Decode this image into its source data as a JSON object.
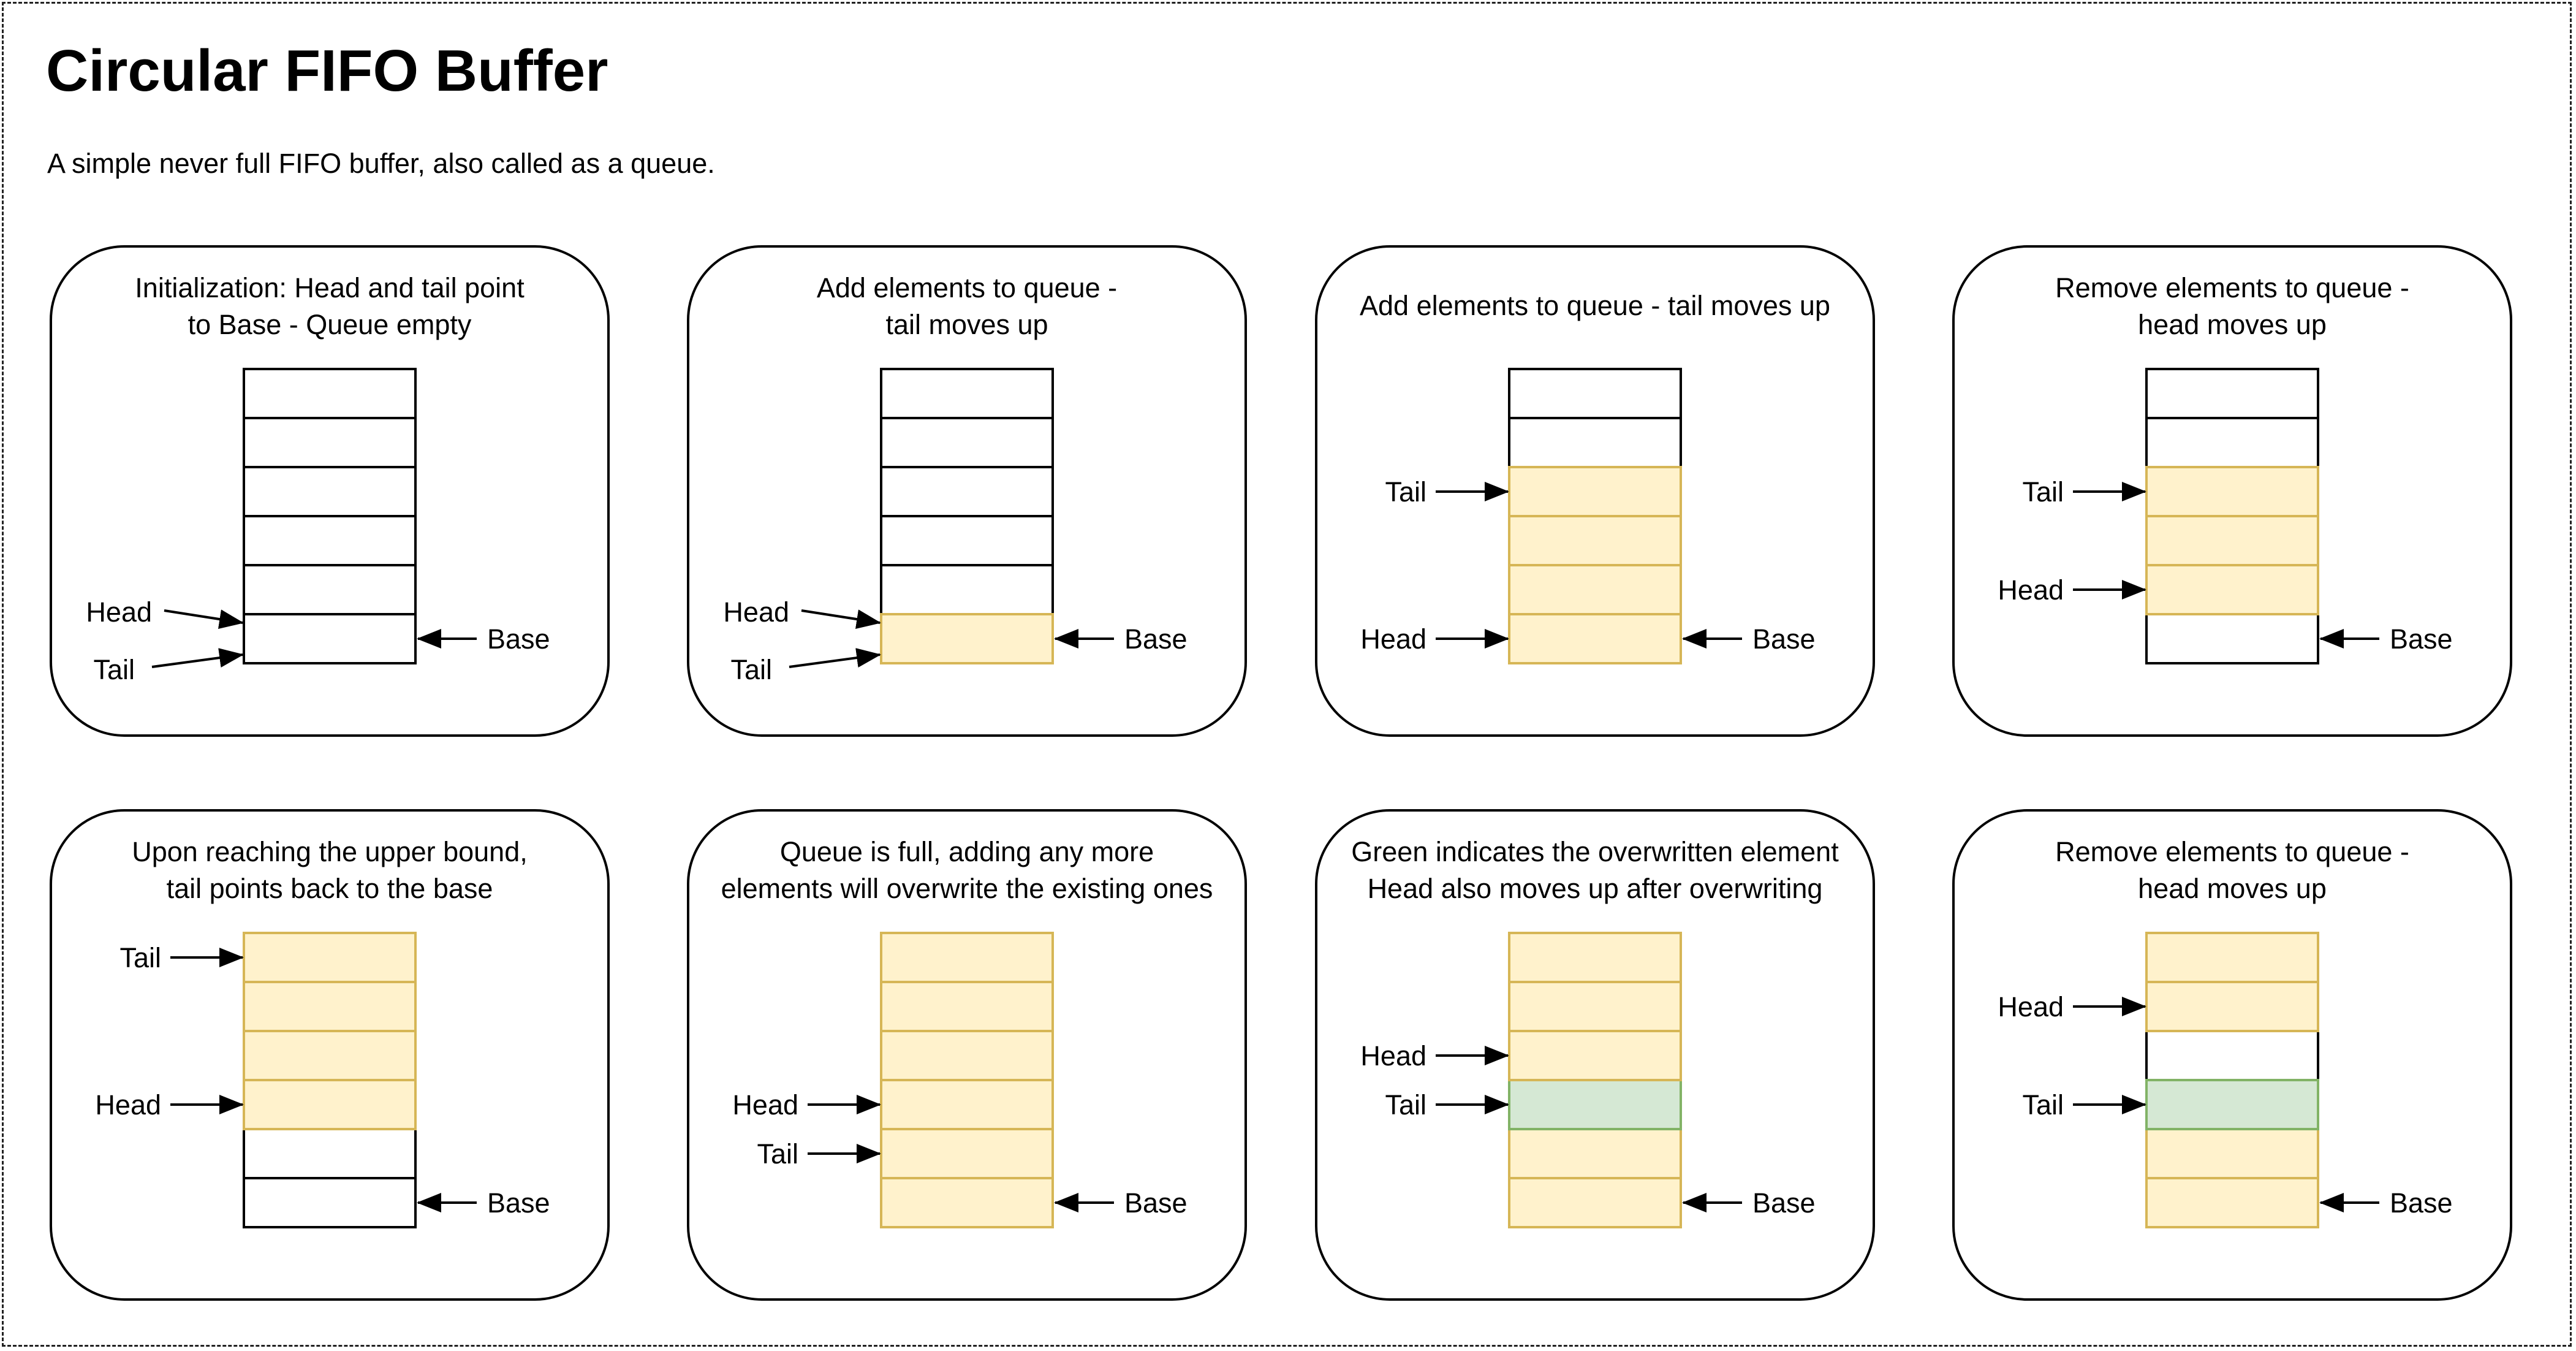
{
  "title": "Circular FIFO Buffer",
  "subtitle": "A simple never full FIFO buffer, also called as a queue.",
  "colors": {
    "empty_fill": "#ffffff",
    "empty_stroke": "#000000",
    "filled_fill": "#fff2cc",
    "filled_stroke": "#d6b656",
    "overwritten_fill": "#d5e8d4",
    "overwritten_stroke": "#82b366"
  },
  "panels": [
    {
      "caption": [
        "Initialization: Head and tail point",
        "to Base - Queue empty"
      ],
      "cell_count": 6,
      "cells": [
        "empty",
        "empty",
        "empty",
        "empty",
        "empty",
        "empty"
      ],
      "pointers": [
        {
          "label": "Head",
          "cell": 1,
          "side": "left",
          "style": "diagonal-down"
        },
        {
          "label": "Tail",
          "cell": 0,
          "side": "left",
          "style": "diagonal-up"
        },
        {
          "label": "Base",
          "cell": 0,
          "side": "right",
          "style": "straight"
        }
      ]
    },
    {
      "caption": [
        "Add elements to queue -",
        "tail moves up"
      ],
      "cell_count": 6,
      "cells": [
        "filled",
        "empty",
        "empty",
        "empty",
        "empty",
        "empty"
      ],
      "pointers": [
        {
          "label": "Head",
          "cell": 1,
          "side": "left",
          "style": "diagonal-down"
        },
        {
          "label": "Tail",
          "cell": 0,
          "side": "left",
          "style": "diagonal-up"
        },
        {
          "label": "Base",
          "cell": 0,
          "side": "right",
          "style": "straight"
        }
      ]
    },
    {
      "caption": [
        "Add elements to queue - tail moves up"
      ],
      "cell_count": 6,
      "cells": [
        "filled",
        "filled",
        "filled",
        "filled",
        "empty",
        "empty"
      ],
      "pointers": [
        {
          "label": "Tail",
          "cell": 3,
          "side": "left",
          "style": "straight"
        },
        {
          "label": "Head",
          "cell": 0,
          "side": "left",
          "style": "straight"
        },
        {
          "label": "Base",
          "cell": 0,
          "side": "right",
          "style": "straight"
        }
      ]
    },
    {
      "caption": [
        "Remove elements to queue -",
        "head moves up"
      ],
      "cell_count": 6,
      "cells": [
        "empty",
        "filled",
        "filled",
        "filled",
        "empty",
        "empty"
      ],
      "pointers": [
        {
          "label": "Tail",
          "cell": 3,
          "side": "left",
          "style": "straight"
        },
        {
          "label": "Head",
          "cell": 1,
          "side": "left",
          "style": "straight"
        },
        {
          "label": "Base",
          "cell": 0,
          "side": "right",
          "style": "straight"
        }
      ]
    },
    {
      "caption": [
        "Upon reaching the upper bound,",
        "tail points back to the base"
      ],
      "cell_count": 6,
      "cells": [
        "empty",
        "empty",
        "filled",
        "filled",
        "filled",
        "filled"
      ],
      "pointers": [
        {
          "label": "Tail",
          "cell": 5,
          "side": "left",
          "style": "straight"
        },
        {
          "label": "Head",
          "cell": 2,
          "side": "left",
          "style": "straight"
        },
        {
          "label": "Base",
          "cell": 0,
          "side": "right",
          "style": "straight"
        }
      ]
    },
    {
      "caption": [
        "Queue is full, adding any more",
        "elements will overwrite the existing ones"
      ],
      "cell_count": 6,
      "cells": [
        "filled",
        "filled",
        "filled",
        "filled",
        "filled",
        "filled"
      ],
      "pointers": [
        {
          "label": "Head",
          "cell": 2,
          "side": "left",
          "style": "straight"
        },
        {
          "label": "Tail",
          "cell": 1,
          "side": "left",
          "style": "straight"
        },
        {
          "label": "Base",
          "cell": 0,
          "side": "right",
          "style": "straight"
        }
      ]
    },
    {
      "caption": [
        "Green indicates the overwritten element",
        "Head also moves up after overwriting"
      ],
      "cell_count": 6,
      "cells": [
        "filled",
        "filled",
        "overwritten",
        "filled",
        "filled",
        "filled"
      ],
      "pointers": [
        {
          "label": "Head",
          "cell": 3,
          "side": "left",
          "style": "straight"
        },
        {
          "label": "Tail",
          "cell": 2,
          "side": "left",
          "style": "straight"
        },
        {
          "label": "Base",
          "cell": 0,
          "side": "right",
          "style": "straight"
        }
      ]
    },
    {
      "caption": [
        "Remove elements to queue -",
        "head moves up"
      ],
      "cell_count": 6,
      "cells": [
        "filled",
        "filled",
        "overwritten",
        "empty",
        "filled",
        "filled"
      ],
      "pointers": [
        {
          "label": "Head",
          "cell": 4,
          "side": "left",
          "style": "straight"
        },
        {
          "label": "Tail",
          "cell": 2,
          "side": "left",
          "style": "straight"
        },
        {
          "label": "Base",
          "cell": 0,
          "side": "right",
          "style": "straight"
        }
      ]
    }
  ]
}
